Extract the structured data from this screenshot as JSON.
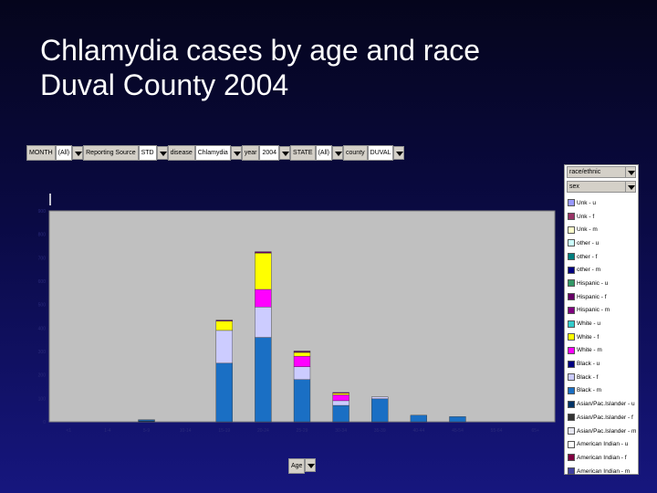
{
  "title": {
    "line1": "Chlamydia cases by age and race",
    "line2": "Duval County 2004"
  },
  "filters": [
    {
      "label": "MONTH",
      "value": "(All)"
    },
    {
      "label": "Reporting Source",
      "value": "STD"
    },
    {
      "label": "disease",
      "value": "Chlamydia"
    },
    {
      "label": "year",
      "value": "2004"
    },
    {
      "label": "STATE",
      "value": "(All)"
    },
    {
      "label": "county",
      "value": "DUVAL"
    }
  ],
  "legend_selectors": {
    "race_ethnic": "race/ethnic",
    "sex": "sex"
  },
  "age_field": "Age",
  "chart_data": {
    "type": "bar",
    "stacked": true,
    "title": "",
    "xlabel": "",
    "ylabel": "",
    "ylim": [
      0,
      900
    ],
    "yticks": [
      0,
      100,
      200,
      300,
      400,
      500,
      600,
      700,
      800,
      900
    ],
    "grid": false,
    "legend_position": "right",
    "categories": [
      "<1",
      "1-4",
      "5-9",
      "10-14",
      "15-19",
      "20-24",
      "25-29",
      "30-34",
      "35-39",
      "40-44",
      "45-54",
      "55-64",
      "65+"
    ],
    "series": [
      {
        "name": "Unk - u",
        "color": "#9999ff",
        "values": [
          0,
          0,
          0,
          0,
          0,
          0,
          0,
          0,
          0,
          0,
          0,
          0,
          0
        ]
      },
      {
        "name": "Unk - f",
        "color": "#993366",
        "values": [
          0,
          0,
          0,
          0,
          0,
          0,
          0,
          0,
          0,
          0,
          0,
          0,
          0
        ]
      },
      {
        "name": "Unk - m",
        "color": "#ffffcc",
        "values": [
          0,
          0,
          0,
          0,
          0,
          0,
          0,
          0,
          0,
          0,
          0,
          0,
          0
        ]
      },
      {
        "name": "other - u",
        "color": "#ccffff",
        "values": [
          0,
          0,
          0,
          0,
          0,
          0,
          0,
          0,
          0,
          0,
          0,
          0,
          0
        ]
      },
      {
        "name": "other - f",
        "color": "#008080",
        "values": [
          0,
          0,
          0,
          0,
          0,
          0,
          0,
          0,
          0,
          0,
          0,
          0,
          0
        ]
      },
      {
        "name": "other - m",
        "color": "#000080",
        "values": [
          0,
          0,
          0,
          0,
          0,
          0,
          0,
          0,
          0,
          0,
          0,
          0,
          0
        ]
      },
      {
        "name": "Hispanic - u",
        "color": "#339966",
        "values": [
          0,
          0,
          0,
          0,
          0,
          0,
          0,
          0,
          0,
          0,
          0,
          0,
          0
        ]
      },
      {
        "name": "Hispanic - f",
        "color": "#660066",
        "values": [
          0,
          0,
          0,
          0,
          4,
          6,
          2,
          0,
          0,
          0,
          0,
          0,
          0
        ]
      },
      {
        "name": "Hispanic - m",
        "color": "#800080",
        "values": [
          0,
          0,
          0,
          0,
          0,
          0,
          4,
          2,
          0,
          0,
          0,
          0,
          0
        ]
      },
      {
        "name": "White - u",
        "color": "#33cccc",
        "values": [
          0,
          0,
          0,
          0,
          0,
          0,
          0,
          0,
          0,
          0,
          0,
          0,
          0
        ]
      },
      {
        "name": "White - f",
        "color": "#ffff00",
        "values": [
          0,
          0,
          0,
          0,
          40,
          155,
          16,
          8,
          0,
          0,
          0,
          0,
          0
        ]
      },
      {
        "name": "White - m",
        "color": "#ff00ff",
        "values": [
          0,
          0,
          0,
          0,
          0,
          75,
          45,
          25,
          0,
          0,
          0,
          0,
          0
        ]
      },
      {
        "name": "Black - u",
        "color": "#000080",
        "values": [
          0,
          0,
          0,
          0,
          0,
          0,
          0,
          0,
          0,
          0,
          0,
          0,
          0
        ]
      },
      {
        "name": "Black - f",
        "color": "#ccccff",
        "values": [
          0,
          0,
          0,
          0,
          140,
          130,
          55,
          20,
          8,
          0,
          0,
          0,
          0
        ]
      },
      {
        "name": "Black - m",
        "color": "#1a6fc4",
        "values": [
          0,
          0,
          5,
          0,
          250,
          360,
          180,
          70,
          98,
          28,
          22,
          0,
          0
        ]
      },
      {
        "name": "Asian/Pac.Islander - u",
        "color": "#003366",
        "values": [
          0,
          0,
          4,
          0,
          0,
          0,
          0,
          0,
          0,
          0,
          0,
          0,
          0
        ]
      },
      {
        "name": "Asian/Pac.Islander - f",
        "color": "#333333",
        "values": [
          0,
          0,
          0,
          0,
          0,
          0,
          0,
          0,
          0,
          0,
          0,
          0,
          0
        ]
      },
      {
        "name": "Asian/Pac.Islander - m",
        "color": "#e6e6f0",
        "values": [
          0,
          0,
          0,
          0,
          0,
          0,
          0,
          0,
          0,
          0,
          0,
          0,
          0
        ]
      },
      {
        "name": "American Indian - u",
        "color": "#ffffff",
        "values": [
          0,
          0,
          0,
          0,
          0,
          0,
          0,
          0,
          0,
          0,
          0,
          0,
          0
        ]
      },
      {
        "name": "American Indian - f",
        "color": "#800040",
        "values": [
          0,
          0,
          0,
          0,
          0,
          0,
          0,
          0,
          0,
          0,
          0,
          0,
          0
        ]
      },
      {
        "name": "American Indian - m",
        "color": "#4040a0",
        "values": [
          0,
          0,
          0,
          0,
          0,
          0,
          0,
          0,
          0,
          0,
          0,
          0,
          0
        ]
      }
    ]
  }
}
